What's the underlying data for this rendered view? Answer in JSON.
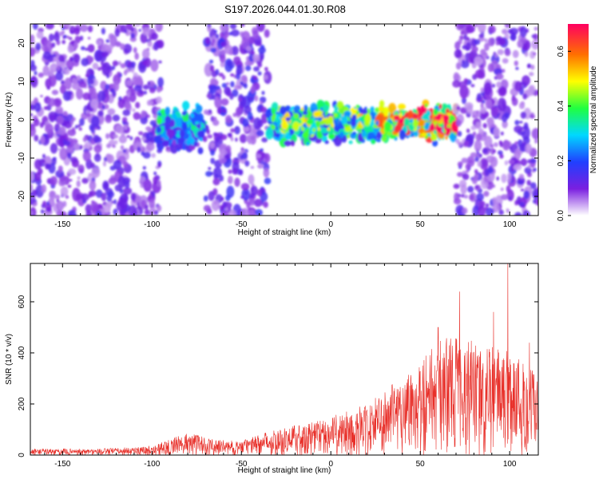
{
  "title": "S197.2026.044.01.30.R08",
  "chart_data": [
    {
      "type": "heatmap",
      "xlabel": "Height of straight line (km)",
      "ylabel": "Frequency (Hz)",
      "xlim": [
        -168,
        116
      ],
      "ylim": [
        -25,
        25
      ],
      "xticks": [
        -150,
        -100,
        -50,
        0,
        50,
        100
      ],
      "yticks": [
        -20,
        -10,
        0,
        10,
        20
      ],
      "colorbar": {
        "label": "Normalized spectral amplitude",
        "range": [
          0.0,
          0.7
        ],
        "ticks": [
          "0.0",
          "0.2",
          "0.4",
          "0.6"
        ],
        "colors": [
          "#ffffff",
          "#7a1fe0",
          "#2040ff",
          "#00d8ff",
          "#20ff40",
          "#ffff00",
          "#ff7000",
          "#ff0060"
        ]
      },
      "regions": [
        {
          "x": [
            -168,
            -95
          ],
          "f": [
            -25,
            25
          ],
          "amp": 0.12,
          "note": "broadband noise"
        },
        {
          "x": [
            -97,
            -70
          ],
          "f": [
            -10,
            5
          ],
          "amp": 0.25,
          "note": "signal band"
        },
        {
          "x": [
            -70,
            -35
          ],
          "f": [
            -25,
            25
          ],
          "amp": 0.14,
          "note": "broadband noise"
        },
        {
          "x": [
            -35,
            70
          ],
          "f": [
            -7,
            5
          ],
          "amp": 0.35,
          "note": "signal band near 0 Hz, strongest 40-70 km"
        },
        {
          "x": [
            70,
            116
          ],
          "f": [
            -25,
            25
          ],
          "amp": 0.12,
          "note": "broadband noise"
        }
      ],
      "peak": {
        "x": 63,
        "f": 0.5,
        "amp": 0.7
      }
    },
    {
      "type": "line",
      "xlabel": "Height of straight line (km)",
      "ylabel": "SNR (10 * v/v)",
      "xlim": [
        -168,
        116
      ],
      "ylim": [
        0,
        750
      ],
      "xticks": [
        -150,
        -100,
        -50,
        0,
        50,
        100
      ],
      "yticks": [
        0,
        200,
        400,
        600
      ],
      "color": "#e8302a",
      "envelope": [
        {
          "x": -168,
          "y": 25
        },
        {
          "x": -130,
          "y": 25
        },
        {
          "x": -100,
          "y": 35
        },
        {
          "x": -80,
          "y": 90
        },
        {
          "x": -65,
          "y": 60
        },
        {
          "x": -50,
          "y": 55
        },
        {
          "x": -35,
          "y": 95
        },
        {
          "x": -20,
          "y": 120
        },
        {
          "x": 0,
          "y": 150
        },
        {
          "x": 20,
          "y": 200
        },
        {
          "x": 35,
          "y": 280
        },
        {
          "x": 50,
          "y": 380
        },
        {
          "x": 60,
          "y": 460
        },
        {
          "x": 72,
          "y": 480
        },
        {
          "x": 85,
          "y": 420
        },
        {
          "x": 99,
          "y": 430
        },
        {
          "x": 110,
          "y": 360
        },
        {
          "x": 116,
          "y": 330
        }
      ],
      "spikes": [
        {
          "x": 60,
          "y": 500
        },
        {
          "x": 72,
          "y": 640
        },
        {
          "x": 91,
          "y": 560
        },
        {
          "x": 99,
          "y": 750
        },
        {
          "x": 111,
          "y": 440
        }
      ]
    }
  ]
}
